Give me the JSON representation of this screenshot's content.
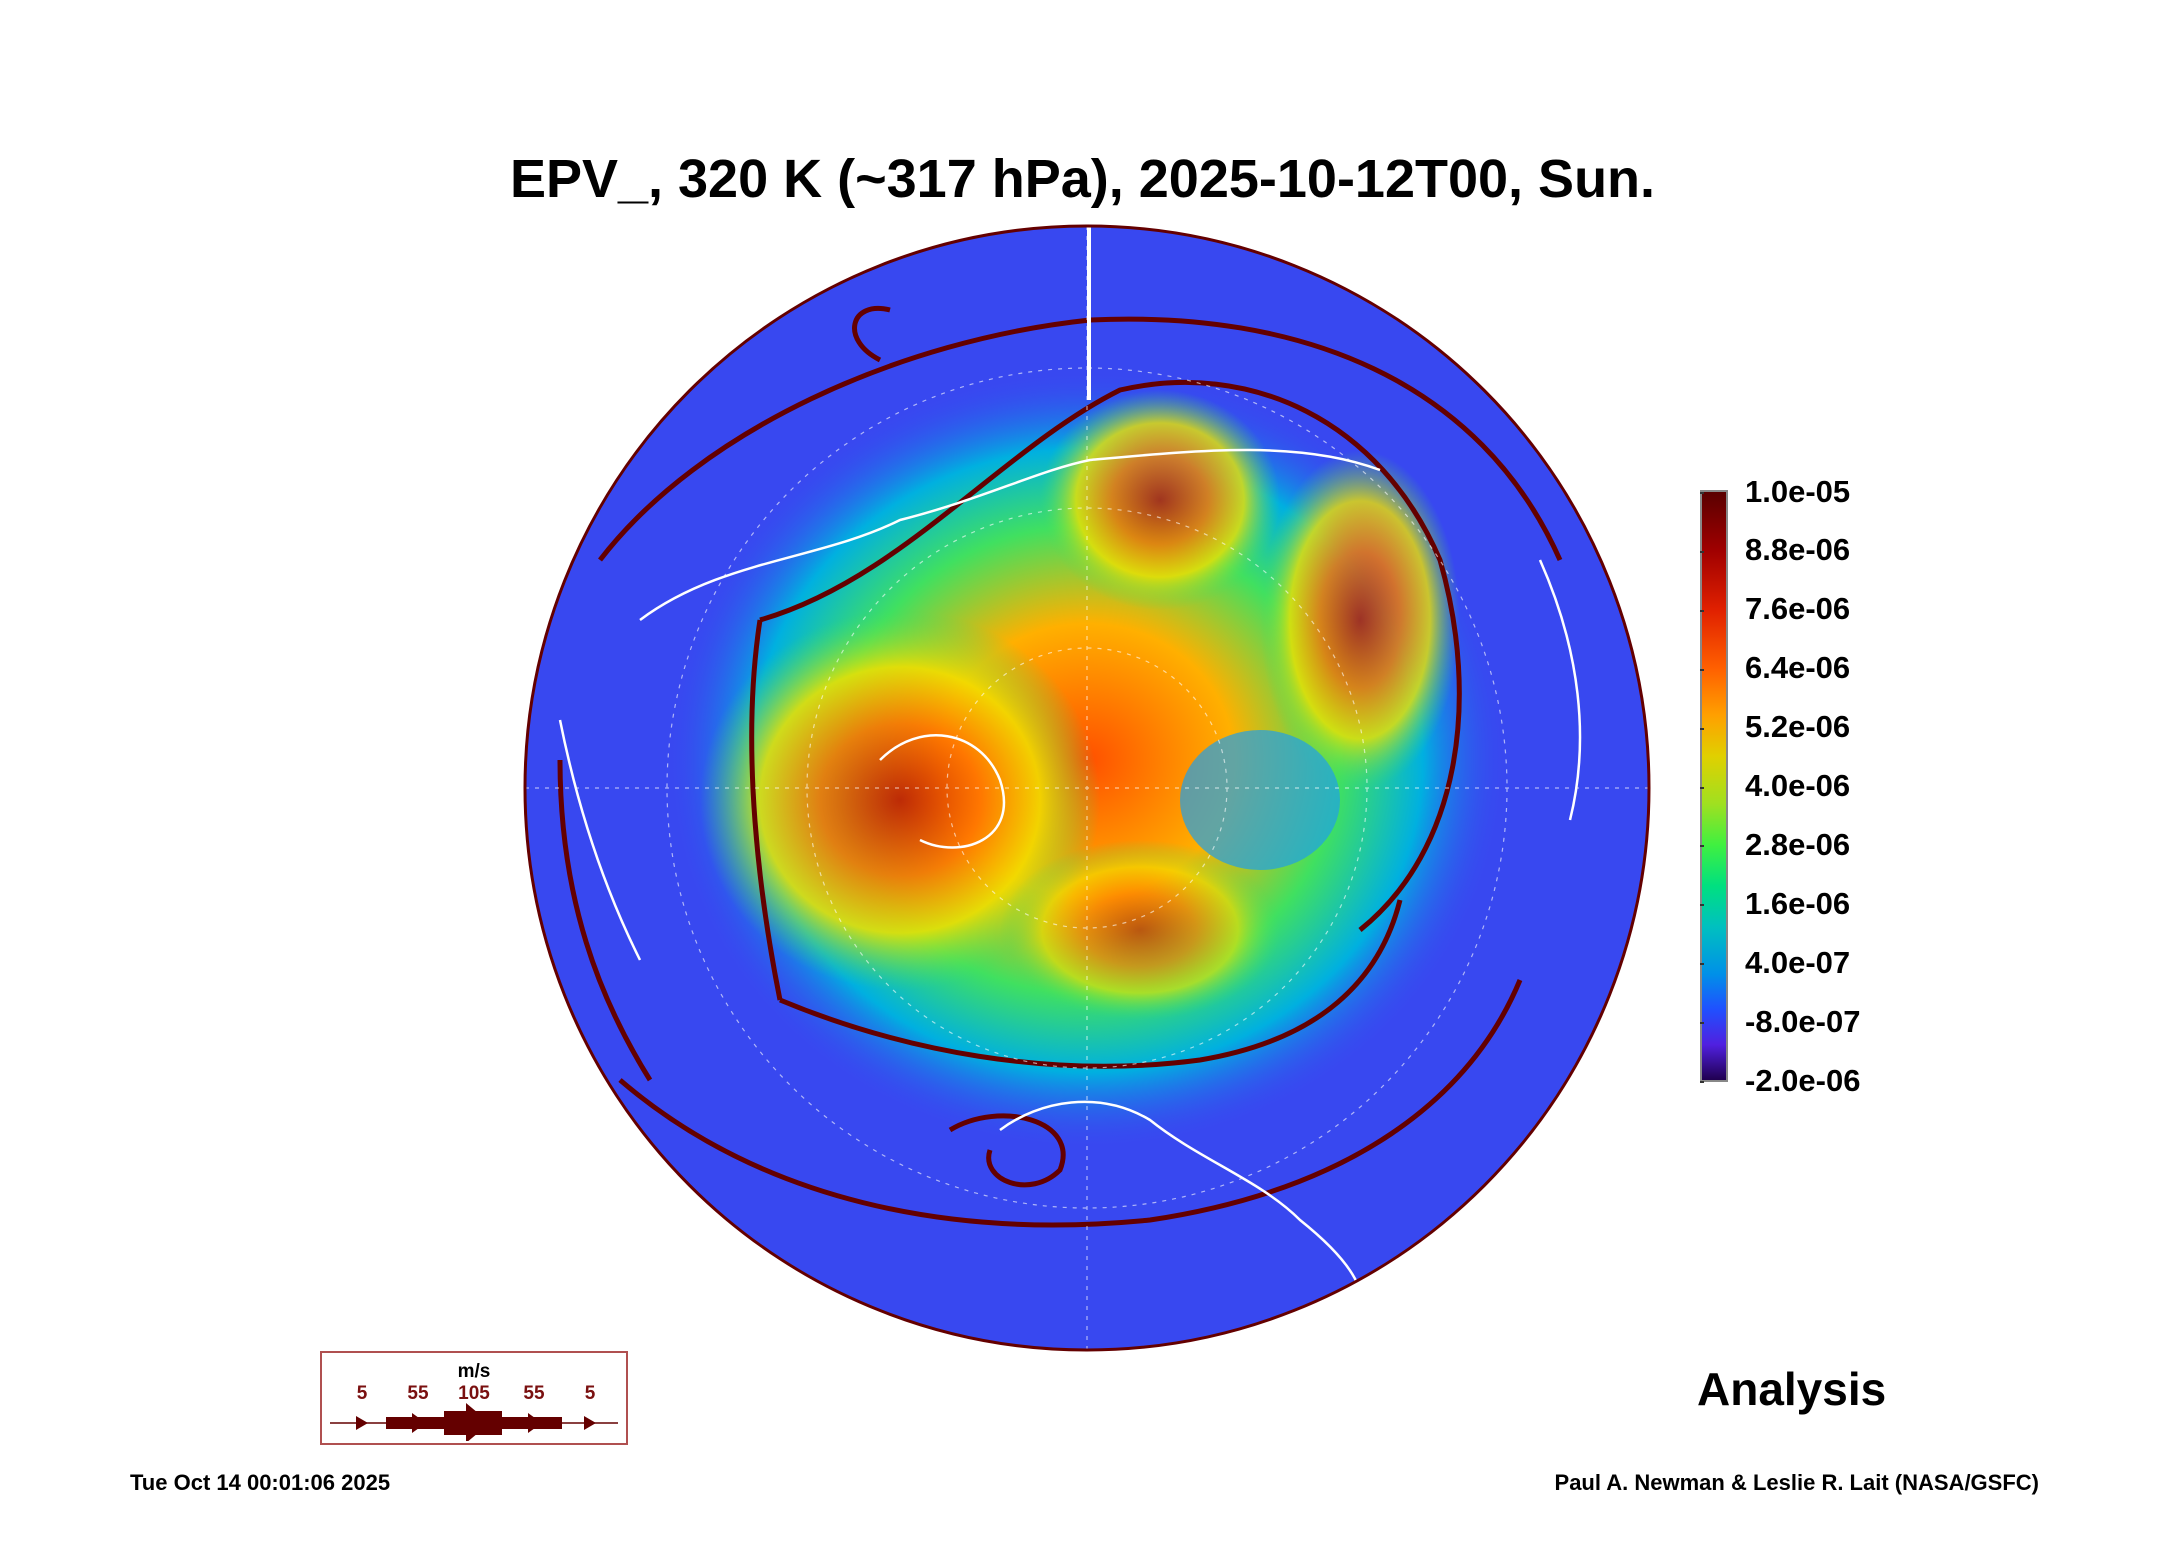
{
  "chart_data": {
    "type": "heatmap",
    "title": "EPV_, 320 K (~317 hPa), 2025-10-12T00, Sun.",
    "projection": "north polar stereographic",
    "variable": "EPV_",
    "colorbar": {
      "range": [
        -2e-06,
        1e-05
      ],
      "tick_labels": [
        "1.0e-05",
        "8.8e-06",
        "7.6e-06",
        "6.4e-06",
        "5.2e-06",
        "4.0e-06",
        "2.8e-06",
        "1.6e-06",
        "4.0e-07",
        "-8.0e-07",
        "-2.0e-06"
      ],
      "colors": [
        "#5a0000",
        "#e02000",
        "#ffa000",
        "#a0e020",
        "#00e080",
        "#0090e8",
        "#2050ff",
        "#200050"
      ]
    },
    "wind_legend": {
      "unit": "m/s",
      "labels": [
        "5",
        "55",
        "105",
        "55",
        "5"
      ],
      "color": "#640000"
    },
    "annotation": "Analysis"
  },
  "footer": {
    "timestamp": "Tue Oct 14 00:01:06 2025",
    "credit": "Paul A. Newman & Leslie R. Lait (NASA/GSFC)"
  }
}
